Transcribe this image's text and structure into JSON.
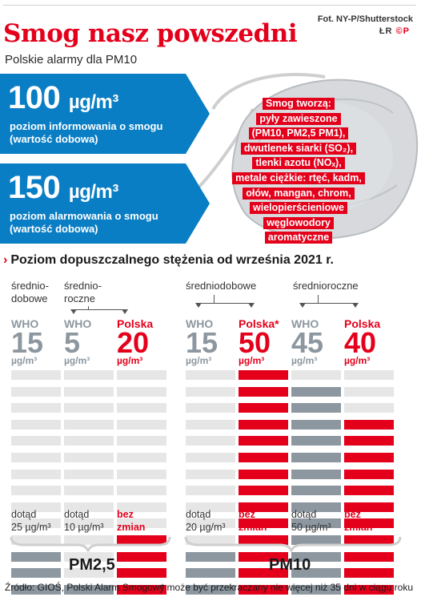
{
  "header": {
    "title": "Smog nasz powszedni",
    "subtitle": "Polskie alarmy dla PM10",
    "credit": "Fot. NY-P/Shutterstock",
    "logo_left": "ŁR",
    "logo_right": "©P"
  },
  "alarms": [
    {
      "value": "100",
      "unit": "µg/m³",
      "line1": "poziom informowania o smogu",
      "line2": "(wartość dobowa)"
    },
    {
      "value": "150",
      "unit": "µg/m³",
      "line1": "poziom alarmowania o smogu",
      "line2": "(wartość dobowa)"
    }
  ],
  "smog_box": {
    "lines": [
      "Smog tworzą:",
      "pyły zawieszone",
      "(PM10, PM2,5 PM1),",
      "dwutlenek siarki (SO₂),",
      "tlenki azotu (NOₓ),",
      "metale ciężkie: rtęć, kadm,",
      "ołów, mangan, chrom,",
      "wielopierścieniowe",
      "węglowodory",
      "aromatyczne"
    ]
  },
  "section_title": "Poziom dopuszczalnego stężenia od września 2021 r.",
  "group_labels": {
    "pm25_daily": [
      "średnio-",
      "dobowe"
    ],
    "pm25_annual": [
      "średnio-",
      "roczne"
    ],
    "pm10_daily": [
      "średniodobowe"
    ],
    "pm10_annual": [
      "średnioroczne"
    ]
  },
  "colors": {
    "who_gray": "#8c97a0",
    "polska_red": "#e4001b",
    "empty_bar": "#e6e6e6",
    "alarm_blue": "#0a7ec4"
  },
  "chart_data": {
    "type": "bar",
    "unit": "µg/m³",
    "groups": [
      "PM2,5",
      "PM10"
    ],
    "columns": [
      {
        "group": "PM2,5",
        "period": "średniodobowe",
        "source": "WHO",
        "value": 15,
        "unit": "µg/m³",
        "filled_segments": 3,
        "total_segments": 14,
        "footer": [
          "dotąd",
          "25 µg/m³"
        ],
        "footer_color": "gray"
      },
      {
        "group": "PM2,5",
        "period": "średnioroczne",
        "source": "WHO",
        "value": 5,
        "unit": "µg/m³",
        "filled_segments": 1,
        "total_segments": 14,
        "footer": [
          "dotąd",
          "10 µg/m³"
        ],
        "footer_color": "gray"
      },
      {
        "group": "PM2,5",
        "period": "średnioroczne",
        "source": "Polska",
        "value": 20,
        "unit": "µg/m³",
        "filled_segments": 4,
        "total_segments": 14,
        "footer": [
          "bez",
          "zmian"
        ],
        "footer_color": "red"
      },
      {
        "group": "PM10",
        "period": "średniodobowe",
        "source": "WHO",
        "value": 15,
        "unit": "µg/m³",
        "filled_segments": 3,
        "total_segments": 14,
        "footer": [
          "dotąd",
          "20 µg/m³"
        ],
        "footer_color": "gray"
      },
      {
        "group": "PM10",
        "period": "średniodobowe",
        "source": "Polska*",
        "value": 50,
        "unit": "µg/m³",
        "filled_segments": 14,
        "total_segments": 14,
        "footer": [
          "bez",
          "zmian"
        ],
        "footer_color": "red"
      },
      {
        "group": "PM10",
        "period": "średnioroczne",
        "source": "WHO",
        "value": 45,
        "unit": "µg/m³",
        "filled_segments": 13,
        "total_segments": 14,
        "footer": [
          "dotąd",
          "50 µg/m³"
        ],
        "footer_color": "gray"
      },
      {
        "group": "PM10",
        "period": "średnioroczne",
        "source": "Polska",
        "value": 40,
        "unit": "µg/m³",
        "filled_segments": 11,
        "total_segments": 14,
        "footer": [
          "bez",
          "zmian"
        ],
        "footer_color": "red"
      }
    ]
  },
  "footer": {
    "pm25_label": "PM2,5",
    "pm10_label": "PM10",
    "source": "Źródło: GIOŚ, Polski Alarm Smogowy",
    "note": "* może być przekraczany nie więcej niż 35 dni w ciągu roku"
  }
}
